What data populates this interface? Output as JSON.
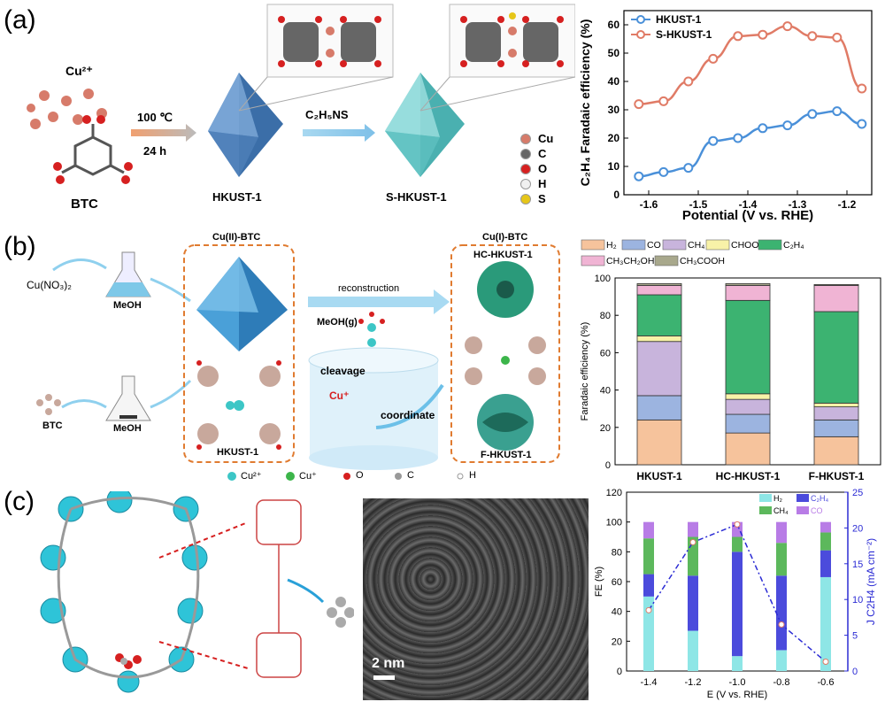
{
  "panels": {
    "a": {
      "label": "(a)"
    },
    "b": {
      "label": "(b)"
    },
    "c": {
      "label": "(c)"
    }
  },
  "schemeA": {
    "cu_ion": "Cu²⁺",
    "btc": "BTC",
    "cond1": "100 ℃",
    "cond2": "24 h",
    "reagent": "C₂H₅NS",
    "hkust": "HKUST-1",
    "shkust": "S-HKUST-1",
    "legend": [
      {
        "label": "Cu",
        "color": "#d77b6a"
      },
      {
        "label": "C",
        "color": "#666666"
      },
      {
        "label": "O",
        "color": "#d62020"
      },
      {
        "label": "H",
        "color": "#f0f0f0"
      },
      {
        "label": "S",
        "color": "#e6c619"
      }
    ]
  },
  "schemeB": {
    "cu_no3": "Cu(NO₃)₂",
    "meoh1": "MeOH",
    "meoh2": "MeOH",
    "btc": "BTC",
    "cu2_btc": "Cu(II)-BTC",
    "cu1_btc": "Cu(I)-BTC",
    "reconstruction": "reconstruction",
    "meoh_g": "MeOH(g)",
    "cleavage": "cleavage",
    "cu_plus": "Cu⁺",
    "coordinate": "coordinate",
    "hkust": "HKUST-1",
    "hc_hkust": "HC-HKUST-1",
    "f_hkust": "F-HKUST-1",
    "legend": [
      {
        "label": "Cu²⁺",
        "color": "#3cc6c6"
      },
      {
        "label": "Cu⁺",
        "color": "#3cb54a"
      },
      {
        "label": "O",
        "color": "#d62020"
      },
      {
        "label": "C",
        "color": "#999999"
      },
      {
        "label": "H",
        "color": "#ffffff"
      }
    ]
  },
  "schemeC": {
    "scale_bar": "2 nm"
  },
  "chart_data": [
    {
      "type": "line",
      "xlabel": "Potential (V vs. RHE)",
      "ylabel": "C₂H₄ Faradaic efficiency (%)",
      "xlim": [
        -1.65,
        -1.15
      ],
      "ylim": [
        0,
        65
      ],
      "xticks": [
        -1.6,
        -1.5,
        -1.4,
        -1.3,
        -1.2
      ],
      "yticks": [
        0,
        10,
        20,
        30,
        40,
        50,
        60
      ],
      "legend_position": "top-left",
      "series": [
        {
          "name": "HKUST-1",
          "color": "#4a90d9",
          "x": [
            -1.62,
            -1.57,
            -1.52,
            -1.47,
            -1.42,
            -1.37,
            -1.32,
            -1.27,
            -1.22,
            -1.17
          ],
          "y": [
            6.5,
            8,
            9.5,
            19,
            20,
            23.5,
            24.5,
            28.5,
            29.5,
            25
          ]
        },
        {
          "name": "S-HKUST-1",
          "color": "#e07b66",
          "x": [
            -1.62,
            -1.57,
            -1.52,
            -1.47,
            -1.42,
            -1.37,
            -1.32,
            -1.27,
            -1.22,
            -1.17
          ],
          "y": [
            32,
            33,
            40,
            48,
            56,
            56.5,
            59.5,
            56,
            55.5,
            37.5
          ]
        }
      ]
    },
    {
      "type": "bar",
      "stacked": true,
      "ylabel": "Faradaic efficiency (%)",
      "ylim": [
        0,
        100
      ],
      "yticks": [
        0,
        20,
        40,
        60,
        80,
        100
      ],
      "categories": [
        "HKUST-1",
        "HC-HKUST-1",
        "F-HKUST-1"
      ],
      "legend_position": "top",
      "series": [
        {
          "name": "H₂",
          "color": "#f6c39c",
          "values": [
            24,
            17,
            15
          ]
        },
        {
          "name": "CO",
          "color": "#9cb4e0",
          "values": [
            13,
            10,
            9
          ]
        },
        {
          "name": "CH₄",
          "color": "#c8b4dc",
          "values": [
            29,
            8,
            7
          ]
        },
        {
          "name": "CHOOH",
          "color": "#f8f2a8",
          "values": [
            3,
            3,
            2
          ]
        },
        {
          "name": "C₂H₄",
          "color": "#3cb371",
          "values": [
            22,
            50,
            49
          ]
        },
        {
          "name": "CH₃CH₂OH",
          "color": "#f0b4d4",
          "values": [
            5,
            8,
            14
          ]
        },
        {
          "name": "CH₃COOH",
          "color": "#a8a88c",
          "values": [
            1,
            1,
            0.5
          ]
        }
      ]
    },
    {
      "type": "bar",
      "stacked": true,
      "xlabel": "E (V vs. RHE)",
      "ylabel": "FE (%)",
      "ylabel_right": "J C2H4 (mA cm⁻²)",
      "ylim": [
        0,
        120
      ],
      "ylim_right": [
        0,
        25
      ],
      "yticks": [
        0,
        20,
        40,
        60,
        80,
        100,
        120
      ],
      "yticks_right": [
        0,
        5,
        10,
        15,
        20,
        25
      ],
      "categories": [
        "-1.4",
        "-1.2",
        "-1.0",
        "-0.8",
        "-0.6"
      ],
      "legend_position": "top-right",
      "series": [
        {
          "name": "H₂",
          "color": "#8ee6e6",
          "values": [
            50,
            27,
            10,
            14,
            63
          ]
        },
        {
          "name": "C₂H₄",
          "color": "#4b4bdc",
          "values": [
            15,
            37,
            70,
            50,
            18
          ]
        },
        {
          "name": "CH₄",
          "color": "#5cb85c",
          "values": [
            24,
            26,
            10,
            22,
            12
          ]
        },
        {
          "name": "CO",
          "color": "#b87ce6",
          "values": [
            11,
            10,
            10,
            14,
            7
          ]
        }
      ],
      "line_series": {
        "name": "J C2H4",
        "color": "#2b2bd4",
        "values": [
          8.5,
          18,
          20.5,
          6.5,
          1.3
        ]
      }
    }
  ]
}
